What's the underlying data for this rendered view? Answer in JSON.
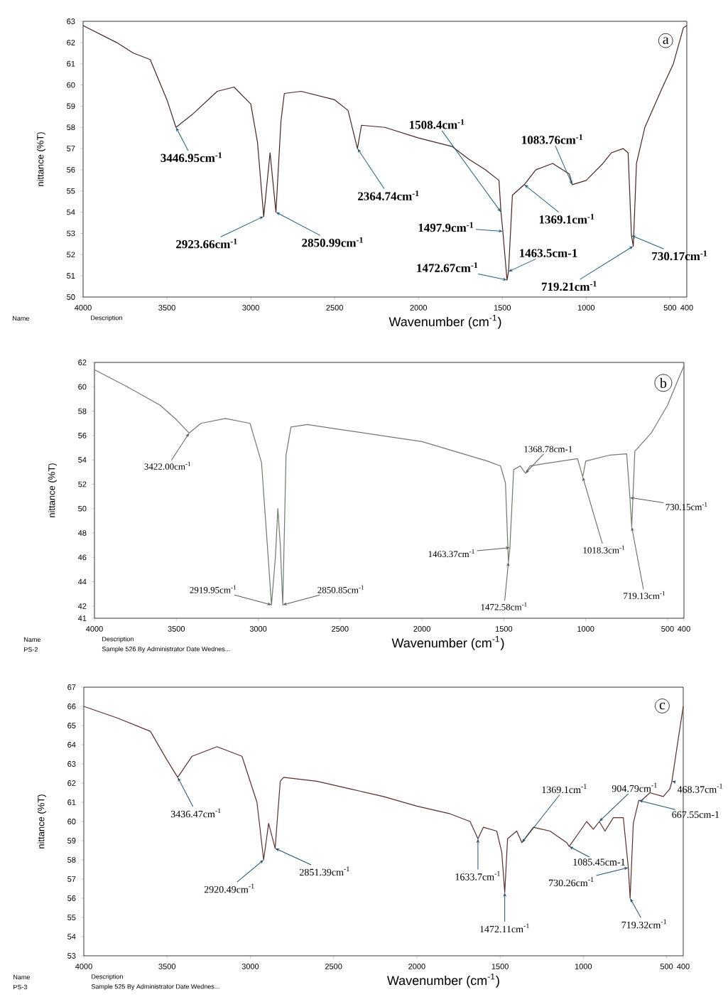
{
  "chart_data": [
    {
      "type": "line",
      "title": "a",
      "xlabel": "Wavenumber (cm$^{-1}$)",
      "ylabel": "nittance (%T)",
      "color": "#4a2424",
      "xlim": [
        4000,
        400
      ],
      "ylim": [
        50,
        63
      ],
      "xticks": [
        4000,
        3500,
        3000,
        2500,
        2000,
        1500,
        1000,
        500,
        400
      ],
      "yticks": [
        50,
        51,
        52,
        53,
        54,
        55,
        56,
        57,
        58,
        59,
        60,
        61,
        62,
        63
      ],
      "x": [
        4000,
        3800,
        3700,
        3600,
        3500,
        3446,
        3350,
        3200,
        3100,
        3000,
        2960,
        2923,
        2885,
        2850,
        2820,
        2800,
        2700,
        2500,
        2420,
        2364,
        2340,
        2200,
        2000,
        1800,
        1700,
        1600,
        1520,
        1508,
        1497,
        1472,
        1463,
        1440,
        1369,
        1300,
        1200,
        1100,
        1083,
        1000,
        900,
        850,
        780,
        750,
        730,
        719,
        700,
        650,
        550,
        480,
        420,
        400
      ],
      "values": [
        62.8,
        62.0,
        61.5,
        61.2,
        59.3,
        58.0,
        58.6,
        59.7,
        59.9,
        59.1,
        57.3,
        53.8,
        56.8,
        54.0,
        58.3,
        59.6,
        59.7,
        59.3,
        58.8,
        57.0,
        58.1,
        58.0,
        57.5,
        57.1,
        56.5,
        56.0,
        55.5,
        54.0,
        53.1,
        50.8,
        51.2,
        54.8,
        55.3,
        56.0,
        56.3,
        55.8,
        55.3,
        55.5,
        56.3,
        56.8,
        57.0,
        56.8,
        52.9,
        52.4,
        56.3,
        58.0,
        59.8,
        61.0,
        62.7,
        62.8
      ],
      "annotations": [
        {
          "text": "3446.95cm$^{-1}$",
          "x": 3446,
          "y": 58.0
        },
        {
          "text": "2923.66cm$^{-1}$",
          "x": 2923,
          "y": 53.8
        },
        {
          "text": "2850.99cm$^{-1}$",
          "x": 2850,
          "y": 54.0
        },
        {
          "text": "2364.74cm$^{-1}$",
          "x": 2364,
          "y": 57.0
        },
        {
          "text": "1508.4cm$^{-1}$",
          "x": 1508,
          "y": 54.0
        },
        {
          "text": "1497.9cm$^{-1}$",
          "x": 1497,
          "y": 53.1
        },
        {
          "text": "1472.67cm$^{-1}$",
          "x": 1472,
          "y": 50.8
        },
        {
          "text": "1463.5cm-1",
          "x": 1463,
          "y": 51.2
        },
        {
          "text": "1369.1cm$^{-1}$",
          "x": 1369,
          "y": 55.3
        },
        {
          "text": "1083.76cm$^{-1}$",
          "x": 1083,
          "y": 55.3
        },
        {
          "text": "730.17cm$^{-1}$",
          "x": 730,
          "y": 52.9
        },
        {
          "text": "719.21cm$^{-1}$",
          "x": 719,
          "y": 52.4
        },
        "Name",
        "Description"
      ]
    },
    {
      "type": "line",
      "title": "b",
      "xlabel": "Wavenumber (cm$^{-1}$)",
      "ylabel": "nittance (%T)",
      "color": "#6e7a6e",
      "xlim": [
        4000,
        400
      ],
      "ylim": [
        41,
        62
      ],
      "xticks": [
        4000,
        3500,
        3000,
        2500,
        2000,
        1500,
        1000,
        500,
        400
      ],
      "yticks": [
        41,
        42,
        44,
        46,
        48,
        50,
        52,
        54,
        56,
        58,
        60,
        62
      ],
      "x": [
        4000,
        3800,
        3600,
        3500,
        3422,
        3350,
        3200,
        3050,
        2980,
        2940,
        2919,
        2895,
        2880,
        2865,
        2850,
        2830,
        2800,
        2700,
        2500,
        2200,
        2000,
        1800,
        1600,
        1520,
        1490,
        1472,
        1463,
        1440,
        1400,
        1368,
        1340,
        1200,
        1050,
        1018,
        1000,
        850,
        750,
        730,
        719,
        700,
        600,
        500,
        420,
        400
      ],
      "values": [
        61.4,
        60.0,
        58.5,
        57.3,
        56.2,
        57.0,
        57.4,
        57.0,
        53.8,
        46.2,
        42.1,
        46.0,
        50.0,
        47.0,
        42.1,
        54.4,
        56.7,
        56.9,
        56.5,
        55.9,
        55.5,
        54.7,
        53.9,
        53.5,
        52.1,
        45.6,
        46.8,
        53.2,
        53.5,
        52.9,
        53.5,
        53.8,
        54.1,
        52.6,
        53.9,
        54.4,
        54.5,
        50.9,
        48.5,
        54.7,
        56.2,
        58.5,
        61.1,
        61.7
      ],
      "annotations": [
        {
          "text": "3422.00cm$^{-1}$",
          "x": 3422,
          "y": 56.2
        },
        {
          "text": "2919.95cm$^{-1}$",
          "x": 2919,
          "y": 42.1
        },
        {
          "text": "2850.85cm$^{-1}$",
          "x": 2850,
          "y": 42.1
        },
        {
          "text": "1463.37cm$^{-1}$",
          "x": 1463,
          "y": 46.8
        },
        {
          "text": "1472.58cm$^{-1}$",
          "x": 1472,
          "y": 45.6
        },
        {
          "text": "1368.78cm-1",
          "x": 1368,
          "y": 52.9
        },
        {
          "text": "1018.3cm$^{-1}$",
          "x": 1018,
          "y": 52.6
        },
        {
          "text": "730.15cm$^{-1}$",
          "x": 730,
          "y": 50.9
        },
        {
          "text": "719.13cm$^{-1}$",
          "x": 719,
          "y": 48.5
        },
        "Name",
        "Description",
        "PS-2",
        "Sample 526 By Administrator Date Wednes..."
      ]
    },
    {
      "type": "line",
      "title": "c",
      "xlabel": "Wavenumber (cm$^{-1}$)",
      "ylabel": "nittance (%T)",
      "color": "#5e2c2c",
      "xlim": [
        4000,
        400
      ],
      "ylim": [
        53,
        67
      ],
      "xticks": [
        4000,
        3500,
        3000,
        2500,
        2000,
        1500,
        1000,
        500,
        400
      ],
      "yticks": [
        53,
        54,
        55,
        56,
        57,
        58,
        59,
        60,
        61,
        62,
        63,
        64,
        65,
        66,
        67
      ],
      "x": [
        4000,
        3800,
        3600,
        3500,
        3436,
        3350,
        3200,
        3050,
        2960,
        2920,
        2890,
        2851,
        2820,
        2800,
        2600,
        2400,
        2200,
        2000,
        1800,
        1680,
        1633,
        1600,
        1520,
        1490,
        1472,
        1455,
        1400,
        1369,
        1300,
        1200,
        1100,
        1085,
        1020,
        980,
        940,
        904,
        870,
        820,
        760,
        730,
        719,
        700,
        667,
        650,
        600,
        520,
        480,
        468,
        430,
        400
      ],
      "values": [
        66.0,
        65.4,
        64.7,
        63.2,
        62.3,
        63.4,
        63.9,
        63.4,
        61.0,
        58.0,
        59.9,
        58.6,
        62.1,
        62.3,
        62.1,
        61.7,
        61.3,
        60.8,
        60.4,
        60.0,
        59.1,
        59.7,
        59.5,
        58.4,
        56.3,
        59.1,
        59.5,
        58.9,
        59.7,
        59.5,
        58.9,
        58.7,
        59.5,
        60.0,
        59.6,
        60.0,
        59.5,
        60.2,
        60.2,
        57.6,
        56.0,
        59.9,
        61.1,
        61.1,
        61.5,
        61.3,
        61.7,
        62.1,
        64.3,
        66.0
      ],
      "annotations": [
        {
          "text": "3436.47cm$^{-1}$",
          "x": 3436,
          "y": 62.3
        },
        {
          "text": "2920.49cm$^{-1}$",
          "x": 2920,
          "y": 58.0
        },
        {
          "text": "2851.39cm$^{-1}$",
          "x": 2851,
          "y": 58.6
        },
        {
          "text": "1633.7cm$^{-1}$",
          "x": 1633,
          "y": 59.1
        },
        {
          "text": "1472.11cm$^{-1}$",
          "x": 1472,
          "y": 56.3
        },
        {
          "text": "1369.1cm$^{-1}$",
          "x": 1369,
          "y": 58.9
        },
        {
          "text": "1085.45cm-1",
          "x": 1085,
          "y": 58.7
        },
        {
          "text": "904.79cm$^{-1}$",
          "x": 904,
          "y": 60.0
        },
        {
          "text": "730.26cm$^{-1}$",
          "x": 730,
          "y": 57.6
        },
        {
          "text": "719.32cm$^{-1}$",
          "x": 719,
          "y": 56.0
        },
        {
          "text": "468.37cm$^{-1}$",
          "x": 468,
          "y": 62.1
        },
        {
          "text": "667.55cm-1",
          "x": 667,
          "y": 61.1
        },
        "Name",
        "Description",
        "PS-3",
        "Sample 525 By Administrator Date Wednes..."
      ]
    }
  ]
}
